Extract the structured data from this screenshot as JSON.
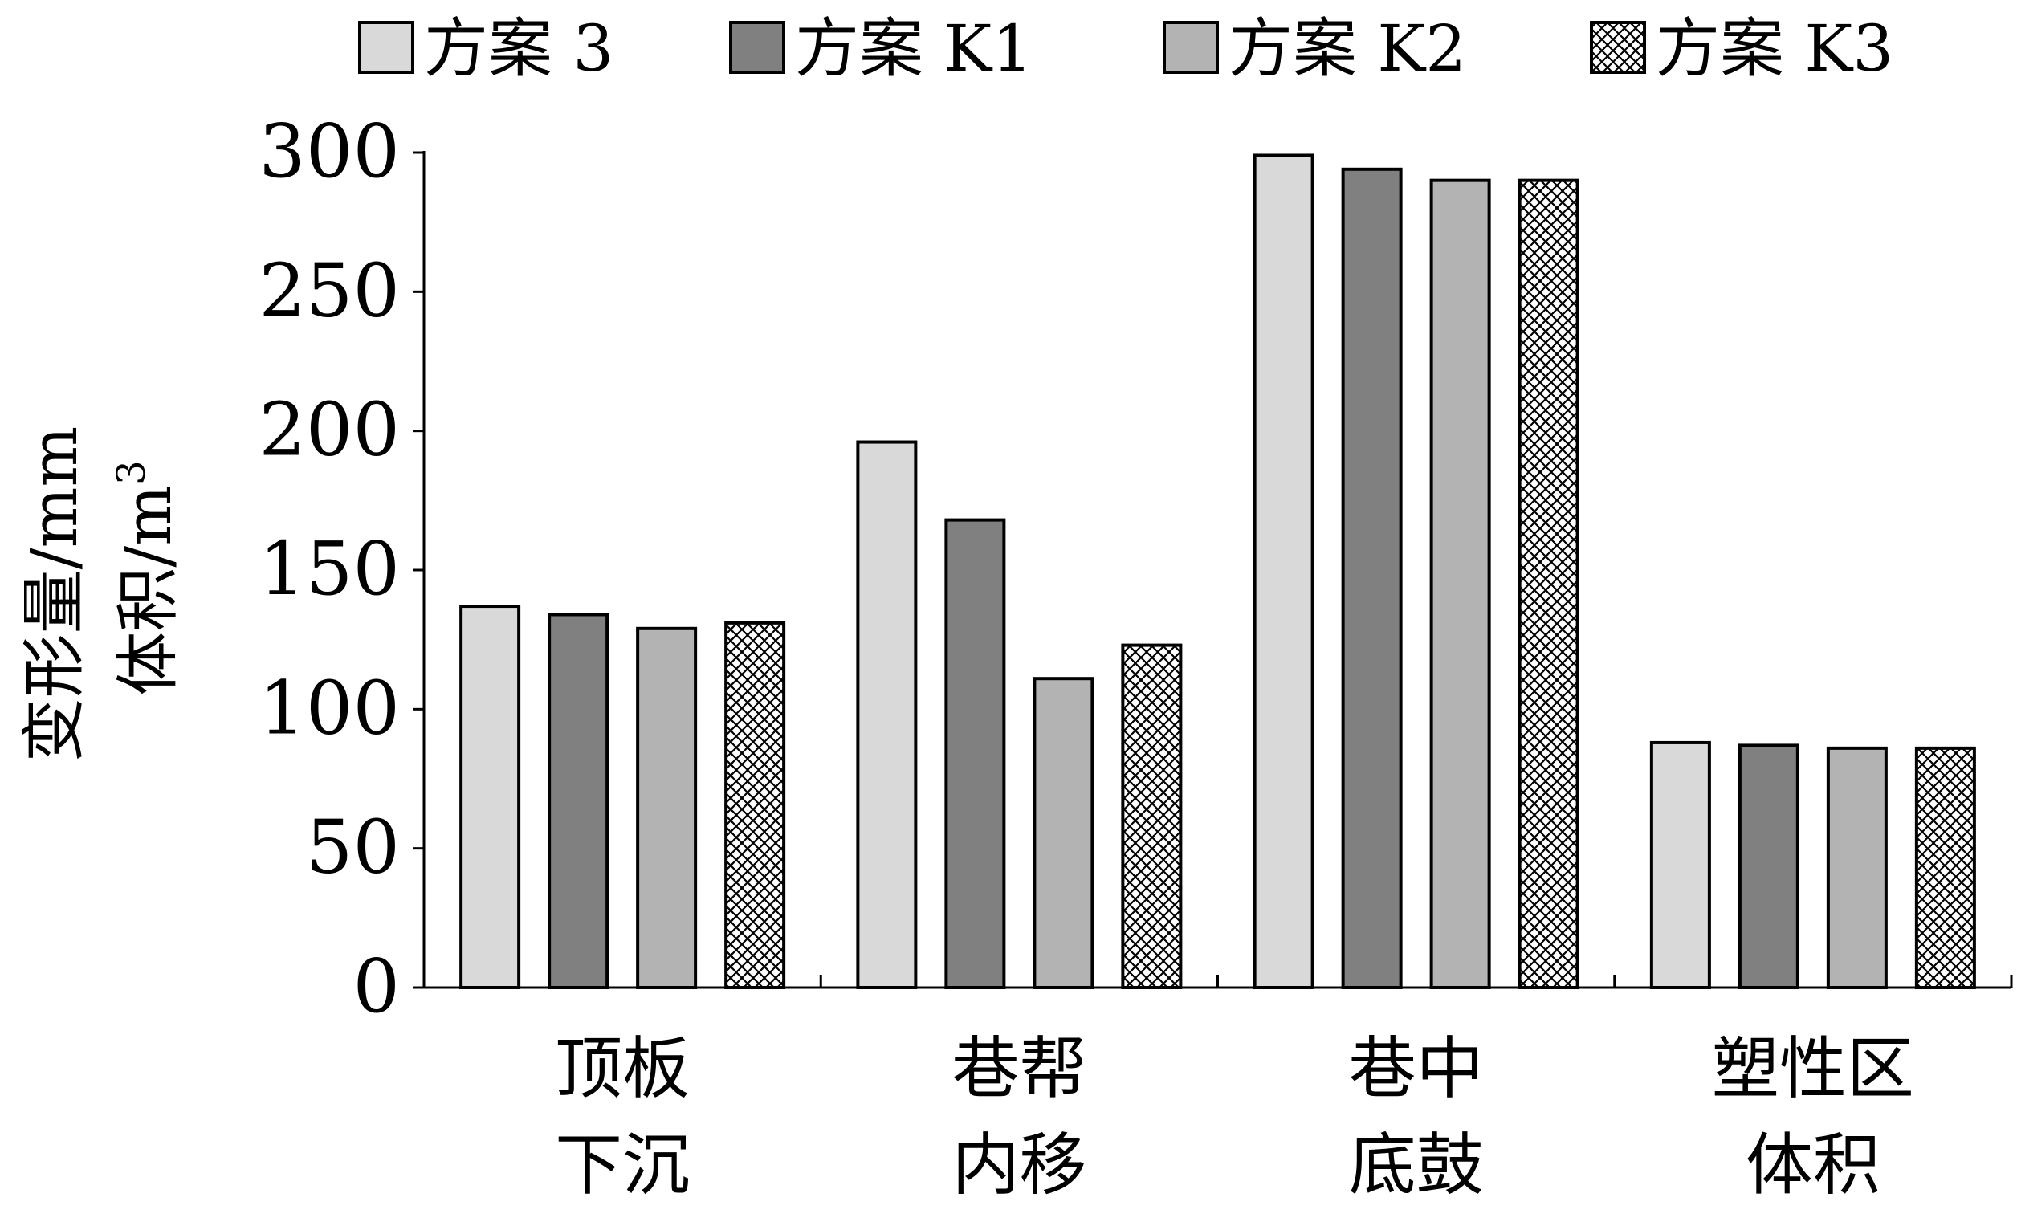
{
  "chart_data": {
    "type": "bar",
    "categories": [
      [
        "顶板",
        "下沉"
      ],
      [
        "巷帮",
        "内移"
      ],
      [
        "巷中",
        "底鼓"
      ],
      [
        "塑性区",
        "体积"
      ]
    ],
    "series": [
      {
        "name": "方案 3",
        "values": [
          137,
          196,
          299,
          88
        ],
        "color": "#d9d9d9",
        "pattern": "solid"
      },
      {
        "name": "方案 K1",
        "values": [
          134,
          168,
          294,
          87
        ],
        "color": "#808080",
        "pattern": "solid"
      },
      {
        "name": "方案 K2",
        "values": [
          129,
          111,
          290,
          86
        ],
        "color": "#b3b3b3",
        "pattern": "solid"
      },
      {
        "name": "方案 K3",
        "values": [
          131,
          123,
          290,
          86
        ],
        "color": "#ffffff",
        "pattern": "crosshatch"
      }
    ],
    "ylabel_lines": [
      "变形量/mm",
      "体积/m"
    ],
    "ylabel_superscript": "3",
    "ylim": [
      0,
      300
    ],
    "yticks": [
      0,
      50,
      100,
      150,
      200,
      250,
      300
    ],
    "grid": false,
    "legend_position": "top"
  }
}
